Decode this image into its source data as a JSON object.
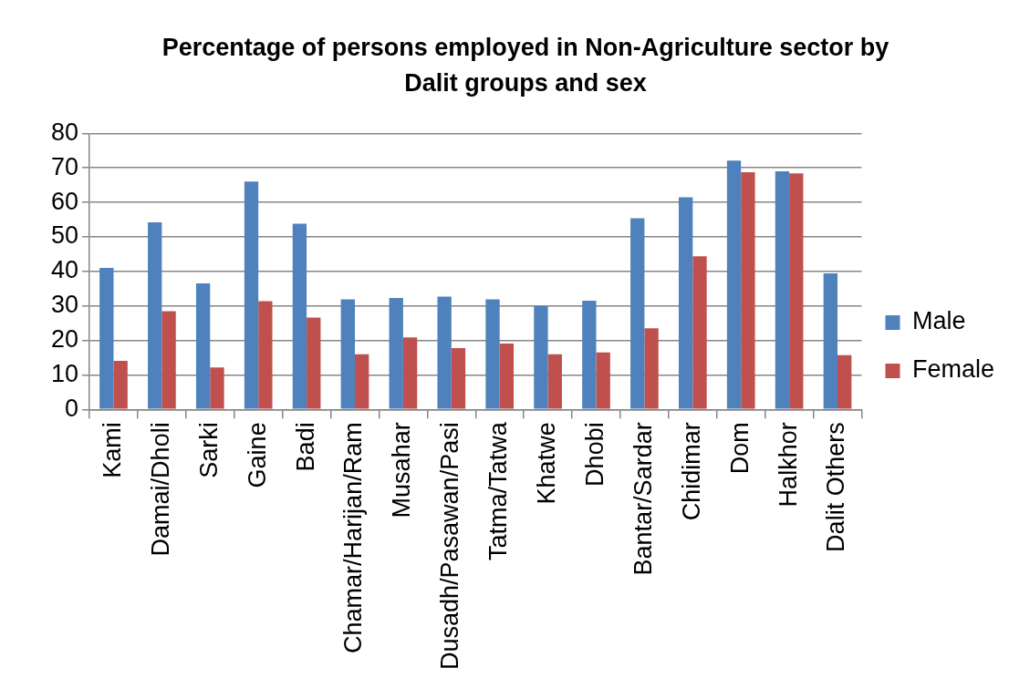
{
  "chart_data": {
    "type": "bar",
    "title": "Percentage of persons employed in Non-Agriculture sector by Dalit groups and sex",
    "categories": [
      "Kami",
      "Damai/Dholi",
      "Sarki",
      "Gaine",
      "Badi",
      "Chamar/Harijan/Ram",
      "Musahar",
      "Dusadh/Pasawan/Pasi",
      "Tatma/Tatwa",
      "Khatwe",
      "Dhobi",
      "Bantar/Sardar",
      "Chidimar",
      "Dom",
      "Halkhor",
      "Dalit Others"
    ],
    "series": [
      {
        "name": "Male",
        "color": "#4f81bd",
        "values": [
          41.0,
          54.2,
          36.5,
          66.0,
          53.8,
          31.9,
          32.3,
          32.7,
          31.9,
          29.9,
          31.5,
          55.4,
          61.5,
          72.1,
          69.0,
          39.4
        ]
      },
      {
        "name": "Female",
        "color": "#c0504d",
        "values": [
          14.1,
          28.5,
          12.2,
          31.4,
          26.6,
          16.0,
          20.9,
          17.8,
          19.1,
          16.0,
          16.5,
          23.5,
          44.4,
          68.7,
          68.4,
          15.7
        ]
      }
    ],
    "ylim": [
      0,
      80
    ],
    "yticks": [
      0,
      10,
      20,
      30,
      40,
      50,
      60,
      70,
      80
    ],
    "grid": "y",
    "legend": "right"
  }
}
